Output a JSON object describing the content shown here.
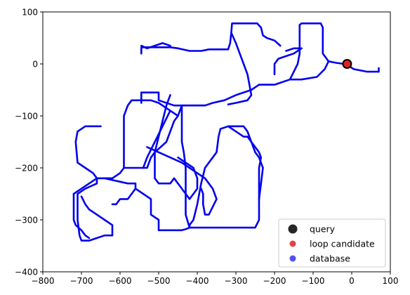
{
  "chart_data": {
    "type": "scatter",
    "title": "",
    "xlabel": "",
    "ylabel": "",
    "xlim": [
      -800,
      100
    ],
    "ylim": [
      -400,
      100
    ],
    "xticks": [
      -800,
      -700,
      -600,
      -500,
      -400,
      -300,
      -200,
      -100,
      0,
      100
    ],
    "yticks": [
      100,
      0,
      -100,
      -200,
      -300,
      -400
    ],
    "grid": false,
    "legend_position": "lower-right",
    "series": [
      {
        "name": "query",
        "color": "#000000",
        "marker": "large-circle",
        "points": [
          [
            -12,
            0
          ]
        ]
      },
      {
        "name": "loop candidate",
        "color": "#dd2222",
        "marker": "circle",
        "points": [
          [
            -12,
            0
          ]
        ]
      },
      {
        "name": "database",
        "color": "#0000ee",
        "marker": "dot-trajectory",
        "paths": [
          [
            [
              -135,
              75
            ],
            [
              -130,
              78
            ],
            [
              -80,
              78
            ],
            [
              -75,
              70
            ],
            [
              -75,
              20
            ],
            [
              -60,
              5
            ],
            [
              -40,
              2
            ],
            [
              -20,
              0
            ],
            [
              -5,
              -5
            ],
            [
              5,
              -10
            ],
            [
              40,
              -15
            ],
            [
              70,
              -15
            ],
            [
              70,
              -8
            ]
          ],
          [
            [
              -135,
              75
            ],
            [
              -135,
              20
            ],
            [
              -140,
              0
            ],
            [
              -160,
              -30
            ],
            [
              -200,
              -40
            ],
            [
              -240,
              -40
            ],
            [
              -260,
              -50
            ],
            [
              -300,
              -60
            ],
            [
              -330,
              -70
            ],
            [
              -360,
              -75
            ],
            [
              -380,
              -80
            ],
            [
              -420,
              -80
            ],
            [
              -460,
              -80
            ],
            [
              -500,
              -70
            ],
            [
              -500,
              -55
            ],
            [
              -545,
              -55
            ],
            [
              -545,
              -75
            ]
          ],
          [
            [
              -160,
              -30
            ],
            [
              -130,
              -30
            ],
            [
              -90,
              -25
            ],
            [
              -70,
              -10
            ],
            [
              -60,
              5
            ]
          ],
          [
            [
              -380,
              -80
            ],
            [
              -400,
              -80
            ],
            [
              -440,
              -80
            ]
          ],
          [
            [
              -130,
              30
            ],
            [
              -150,
              20
            ],
            [
              -170,
              15
            ],
            [
              -190,
              10
            ],
            [
              -195,
              5
            ],
            [
              -200,
              0
            ],
            [
              -200,
              -20
            ]
          ],
          [
            [
              -130,
              30
            ],
            [
              -150,
              30
            ],
            [
              -170,
              25
            ]
          ],
          [
            [
              -245,
              78
            ],
            [
              -260,
              78
            ],
            [
              -300,
              78
            ],
            [
              -310,
              78
            ],
            [
              -312,
              60
            ],
            [
              -315,
              40
            ],
            [
              -320,
              28
            ],
            [
              -340,
              28
            ],
            [
              -370,
              28
            ],
            [
              -390,
              25
            ],
            [
              -420,
              25
            ],
            [
              -450,
              30
            ],
            [
              -470,
              32
            ],
            [
              -500,
              32
            ],
            [
              -545,
              32
            ],
            [
              -545,
              20
            ]
          ],
          [
            [
              -245,
              78
            ],
            [
              -235,
              70
            ],
            [
              -230,
              55
            ],
            [
              -220,
              50
            ],
            [
              -200,
              45
            ],
            [
              -185,
              35
            ]
          ],
          [
            [
              -312,
              60
            ],
            [
              -300,
              40
            ],
            [
              -290,
              20
            ],
            [
              -280,
              0
            ],
            [
              -270,
              -20
            ],
            [
              -265,
              -40
            ],
            [
              -260,
              -60
            ],
            [
              -270,
              -70
            ],
            [
              -300,
              -75
            ],
            [
              -320,
              -78
            ]
          ],
          [
            [
              -545,
              35
            ],
            [
              -530,
              30
            ],
            [
              -510,
              35
            ],
            [
              -490,
              40
            ],
            [
              -470,
              35
            ]
          ],
          [
            [
              -570,
              -70
            ],
            [
              -545,
              -70
            ],
            [
              -520,
              -70
            ],
            [
              -500,
              -75
            ],
            [
              -470,
              -90
            ],
            [
              -450,
              -100
            ],
            [
              -440,
              -80
            ],
            [
              -440,
              -100
            ],
            [
              -440,
              -150
            ],
            [
              -435,
              -170
            ],
            [
              -430,
              -200
            ],
            [
              -430,
              -250
            ],
            [
              -430,
              -290
            ],
            [
              -420,
              -315
            ],
            [
              -400,
              -315
            ],
            [
              -350,
              -315
            ],
            [
              -300,
              -315
            ],
            [
              -250,
              -315
            ],
            [
              -240,
              -300
            ],
            [
              -240,
              -260
            ],
            [
              -235,
              -230
            ],
            [
              -230,
              -200
            ],
            [
              -240,
              -180
            ],
            [
              -250,
              -170
            ],
            [
              -270,
              -130
            ],
            [
              -280,
              -120
            ],
            [
              -290,
              -120
            ],
            [
              -310,
              -120
            ],
            [
              -320,
              -120
            ],
            [
              -340,
              -125
            ],
            [
              -345,
              -140
            ],
            [
              -350,
              -170
            ],
            [
              -360,
              -180
            ],
            [
              -380,
              -200
            ],
            [
              -390,
              -230
            ],
            [
              -400,
              -270
            ],
            [
              -410,
              -300
            ],
            [
              -420,
              -310
            ],
            [
              -420,
              -315
            ]
          ],
          [
            [
              -570,
              -70
            ],
            [
              -580,
              -80
            ],
            [
              -590,
              -100
            ],
            [
              -590,
              -130
            ],
            [
              -590,
              -170
            ],
            [
              -590,
              -200
            ],
            [
              -560,
              -200
            ],
            [
              -540,
              -200
            ],
            [
              -530,
              -200
            ],
            [
              -520,
              -180
            ],
            [
              -510,
              -170
            ],
            [
              -480,
              -150
            ],
            [
              -460,
              -110
            ],
            [
              -450,
              -100
            ]
          ],
          [
            [
              -470,
              -90
            ],
            [
              -490,
              -120
            ],
            [
              -510,
              -150
            ],
            [
              -530,
              -180
            ],
            [
              -540,
              -200
            ]
          ],
          [
            [
              -530,
              -160
            ],
            [
              -500,
              -170
            ],
            [
              -470,
              -180
            ],
            [
              -440,
              -190
            ],
            [
              -420,
              -200
            ],
            [
              -400,
              -210
            ],
            [
              -380,
              -220
            ],
            [
              -360,
              -240
            ],
            [
              -350,
              -260
            ],
            [
              -370,
              -290
            ],
            [
              -380,
              -290
            ],
            [
              -385,
              -270
            ],
            [
              -385,
              -250
            ],
            [
              -390,
              -240
            ]
          ],
          [
            [
              -470,
              -60
            ],
            [
              -480,
              -80
            ],
            [
              -490,
              -110
            ],
            [
              -500,
              -140
            ],
            [
              -510,
              -170
            ],
            [
              -510,
              -200
            ],
            [
              -510,
              -220
            ],
            [
              -500,
              -230
            ],
            [
              -470,
              -230
            ],
            [
              -460,
              -220
            ],
            [
              -450,
              -230
            ],
            [
              -440,
              -240
            ],
            [
              -430,
              -250
            ],
            [
              -420,
              -260
            ],
            [
              -410,
              -250
            ],
            [
              -400,
              -240
            ],
            [
              -400,
              -220
            ],
            [
              -410,
              -200
            ],
            [
              -430,
              -190
            ],
            [
              -450,
              -180
            ]
          ],
          [
            [
              -650,
              -120
            ],
            [
              -690,
              -120
            ],
            [
              -710,
              -130
            ],
            [
              -715,
              -150
            ],
            [
              -710,
              -190
            ],
            [
              -690,
              -200
            ],
            [
              -670,
              -210
            ],
            [
              -660,
              -220
            ],
            [
              -620,
              -220
            ],
            [
              -600,
              -210
            ],
            [
              -590,
              -200
            ]
          ],
          [
            [
              -660,
              -220
            ],
            [
              -660,
              -230
            ],
            [
              -690,
              -240
            ],
            [
              -710,
              -250
            ],
            [
              -710,
              -270
            ],
            [
              -710,
              -300
            ],
            [
              -705,
              -330
            ],
            [
              -700,
              -340
            ],
            [
              -680,
              -340
            ],
            [
              -660,
              -335
            ],
            [
              -640,
              -330
            ],
            [
              -620,
              -330
            ],
            [
              -620,
              -310
            ],
            [
              -640,
              -300
            ],
            [
              -660,
              -290
            ],
            [
              -680,
              -280
            ],
            [
              -690,
              -270
            ],
            [
              -700,
              -255
            ]
          ],
          [
            [
              -720,
              -250
            ],
            [
              -700,
              -240
            ],
            [
              -680,
              -230
            ],
            [
              -660,
              -220
            ],
            [
              -640,
              -220
            ],
            [
              -580,
              -230
            ],
            [
              -560,
              -230
            ],
            [
              -560,
              -240
            ],
            [
              -540,
              -250
            ],
            [
              -520,
              -260
            ],
            [
              -520,
              -290
            ],
            [
              -500,
              -300
            ],
            [
              -500,
              -320
            ],
            [
              -480,
              -320
            ],
            [
              -450,
              -320
            ]
          ],
          [
            [
              -720,
              -250
            ],
            [
              -720,
              -280
            ],
            [
              -720,
              -300
            ],
            [
              -715,
              -310
            ],
            [
              -700,
              -320
            ],
            [
              -690,
              -330
            ],
            [
              -680,
              -335
            ]
          ],
          [
            [
              -560,
              -240
            ],
            [
              -570,
              -250
            ],
            [
              -580,
              -260
            ],
            [
              -590,
              -260
            ],
            [
              -600,
              -260
            ],
            [
              -610,
              -270
            ],
            [
              -620,
              -270
            ]
          ],
          [
            [
              -450,
              -320
            ],
            [
              -440,
              -320
            ],
            [
              -430,
              -318
            ],
            [
              -420,
              -315
            ]
          ],
          [
            [
              -320,
              -120
            ],
            [
              -300,
              -130
            ],
            [
              -280,
              -140
            ],
            [
              -270,
              -140
            ],
            [
              -260,
              -150
            ],
            [
              -250,
              -160
            ],
            [
              -240,
              -170
            ],
            [
              -235,
              -180
            ],
            [
              -240,
              -200
            ],
            [
              -240,
              -230
            ],
            [
              -240,
              -260
            ]
          ]
        ]
      }
    ],
    "legend": {
      "entries": [
        {
          "label": "query",
          "color": "#000000",
          "marker": "large-circle"
        },
        {
          "label": "loop candidate",
          "color": "#dd2222",
          "marker": "circle"
        },
        {
          "label": "database",
          "color": "#3333ee",
          "marker": "circle"
        }
      ]
    }
  }
}
